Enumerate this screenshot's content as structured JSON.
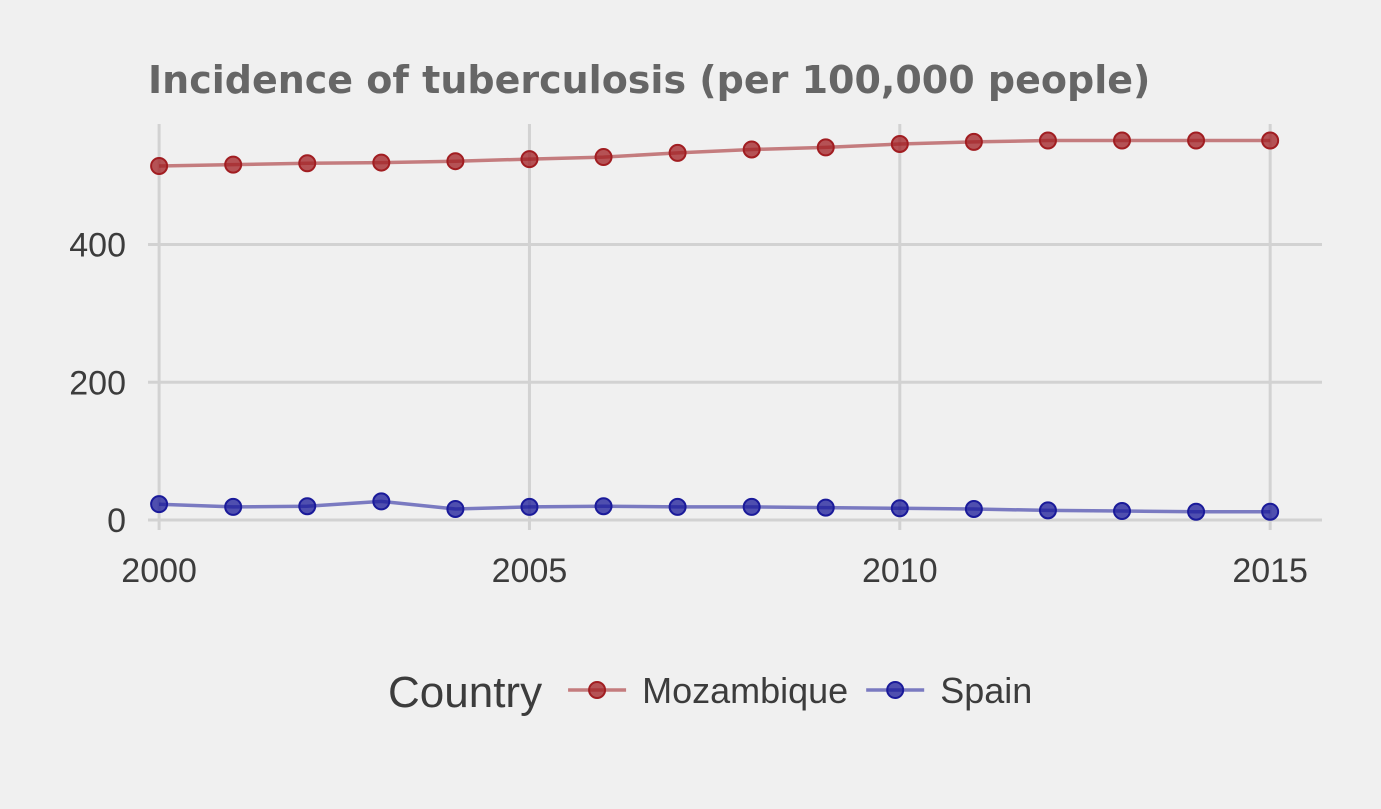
{
  "chart_data": {
    "type": "line",
    "title": "Incidence of tuberculosis (per 100,000 people)",
    "xlabel": "",
    "ylabel": "",
    "x": [
      2000,
      2001,
      2002,
      2003,
      2004,
      2005,
      2006,
      2007,
      2008,
      2009,
      2010,
      2011,
      2012,
      2013,
      2014,
      2015
    ],
    "x_ticks": [
      "2000",
      "2005",
      "2010",
      "2015"
    ],
    "y_ticks": [
      "0",
      "200",
      "400"
    ],
    "xlim": [
      1999.85,
      2015.7
    ],
    "ylim": [
      0,
      575
    ],
    "grid": true,
    "legend": {
      "title": "Country",
      "position": "bottom"
    },
    "series": [
      {
        "name": "Mozambique",
        "color": "#a11d21",
        "values": [
          514,
          516,
          518,
          519,
          521,
          524,
          527,
          533,
          538,
          541,
          546,
          549,
          551,
          551,
          551,
          551
        ]
      },
      {
        "name": "Spain",
        "color": "#1a1a9a",
        "values": [
          23,
          19,
          20,
          27,
          16,
          19,
          20,
          19,
          19,
          18,
          17,
          16,
          14,
          13,
          12,
          12
        ]
      }
    ]
  }
}
